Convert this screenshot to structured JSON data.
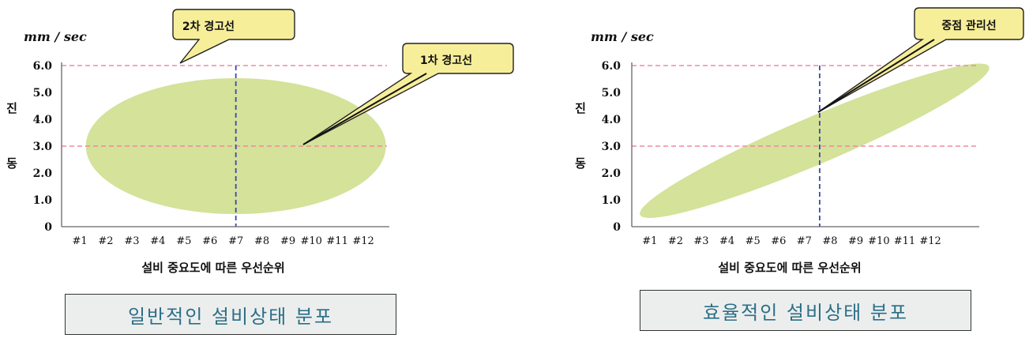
{
  "chart_data": [
    {
      "type": "scatter",
      "title": "일반적인 설비상태 분포",
      "y_unit": "mm / sec",
      "ylabel": [
        "진",
        "동"
      ],
      "xlabel": "설비 중요도에 따른 우선순위",
      "ylim": [
        0,
        6.0
      ],
      "y_ticks": [
        "0",
        "1.0",
        "2.0",
        "3.0",
        "4.0",
        "5.0",
        "6.0"
      ],
      "y_tick_values": [
        0,
        1,
        2,
        3,
        4,
        5,
        6
      ],
      "x_ticks": [
        "#1",
        "#2",
        "#3",
        "#4",
        "#5",
        "#6",
        "#7",
        "#8",
        "#9",
        "#10",
        "#11",
        "#12"
      ],
      "x_tick_values": [
        1,
        2,
        3,
        4,
        5,
        6,
        7,
        8,
        9,
        9.9,
        10.9,
        11.9
      ],
      "xlim": [
        0.3,
        12.9
      ],
      "thresholds": [
        {
          "value": 6.0,
          "label": "2차 경고선"
        },
        {
          "value": 3.0,
          "label": "1차 경고선"
        }
      ],
      "vertical_line_x": 7,
      "distribution": {
        "shape": "ellipse",
        "cx": 7,
        "cy": 3.0,
        "rx": 5.8,
        "ry": 2.45,
        "color": "#d4e29a"
      },
      "callouts": [
        {
          "label": "2차 경고선",
          "target": [
            4.9,
            6.0
          ]
        },
        {
          "label": "1차 경고선",
          "target": [
            9.5,
            3.0
          ]
        }
      ],
      "colors": {
        "threshold": "#f08aa0",
        "vline": "#3b4aa8",
        "axis": "#666666"
      }
    },
    {
      "type": "scatter",
      "title": "효율적인 설비상태 분포",
      "y_unit": "mm / sec",
      "ylabel": [
        "진",
        "동"
      ],
      "xlabel": "설비 중요도에 따른 우선순위",
      "ylim": [
        0,
        6.0
      ],
      "y_ticks": [
        "0",
        "1.0",
        "2.0",
        "3.0",
        "4.0",
        "5.0",
        "6.0"
      ],
      "y_tick_values": [
        0,
        1,
        2,
        3,
        4,
        5,
        6
      ],
      "x_ticks": [
        "#1",
        "#2",
        "#3",
        "#4",
        "#5",
        "#6",
        "#7",
        "#8",
        "#9",
        "#10",
        "#11",
        "#12"
      ],
      "x_tick_values": [
        1,
        2,
        3,
        4,
        5,
        6,
        7,
        8,
        9,
        9.9,
        10.9,
        11.9
      ],
      "xlim": [
        0.3,
        13.8
      ],
      "thresholds": [
        {
          "value": 6.0,
          "label": ""
        },
        {
          "value": 3.0,
          "label": ""
        }
      ],
      "vertical_line_x": 7.6,
      "vertical_line_top": 6.0,
      "distribution": {
        "shape": "ellipse",
        "cx": 7.4,
        "cy": 3.2,
        "rx": 7.3,
        "ry": 0.55,
        "angle_deg": -23,
        "color": "#d4e29a"
      },
      "callouts": [
        {
          "label": "중점 관리선",
          "target": [
            7.6,
            4.3
          ]
        }
      ],
      "colors": {
        "threshold": "#f08aa0",
        "vline": "#3b4aa8",
        "axis": "#666666"
      }
    }
  ]
}
